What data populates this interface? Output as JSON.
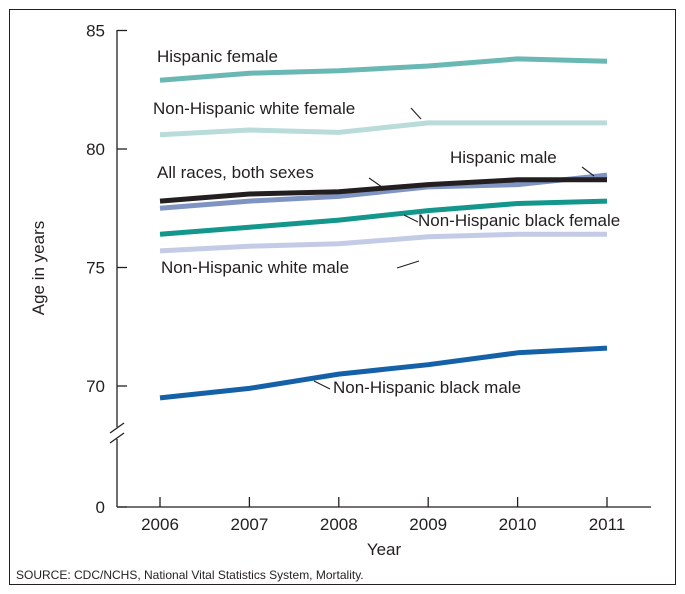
{
  "chart_data": {
    "type": "line",
    "xlabel": "Year",
    "ylabel": "Age in years",
    "x": [
      "2006",
      "2007",
      "2008",
      "2009",
      "2010",
      "2011"
    ],
    "y_ticks": [
      "0",
      "70",
      "75",
      "80",
      "85"
    ],
    "ylim": [
      68.5,
      85
    ],
    "axis_break": true,
    "grid": false,
    "series": [
      {
        "name": "Hispanic female",
        "color": "#6ab8b3",
        "values": [
          82.9,
          83.2,
          83.3,
          83.5,
          83.8,
          83.7
        ]
      },
      {
        "name": "Non-Hispanic white female",
        "color": "#b9dcda",
        "values": [
          80.6,
          80.8,
          80.7,
          81.1,
          81.1,
          81.1
        ]
      },
      {
        "name": "Hispanic male",
        "color": "#8094c4",
        "values": [
          77.5,
          77.8,
          78.0,
          78.4,
          78.5,
          78.9
        ]
      },
      {
        "name": "All races, both sexes",
        "color": "#231f20",
        "values": [
          77.8,
          78.1,
          78.2,
          78.5,
          78.7,
          78.7
        ]
      },
      {
        "name": "Non-Hispanic black female",
        "color": "#13968b",
        "values": [
          76.4,
          76.7,
          77.0,
          77.4,
          77.7,
          77.8
        ]
      },
      {
        "name": "Non-Hispanic white male",
        "color": "#c3cbe6",
        "values": [
          75.7,
          75.9,
          76.0,
          76.3,
          76.4,
          76.4
        ]
      },
      {
        "name": "Non-Hispanic black male",
        "color": "#1561a8",
        "values": [
          69.5,
          69.9,
          70.5,
          70.9,
          71.4,
          71.6
        ]
      }
    ],
    "source": "SOURCE: CDC/NCHS, National Vital Statistics System, Mortality."
  }
}
